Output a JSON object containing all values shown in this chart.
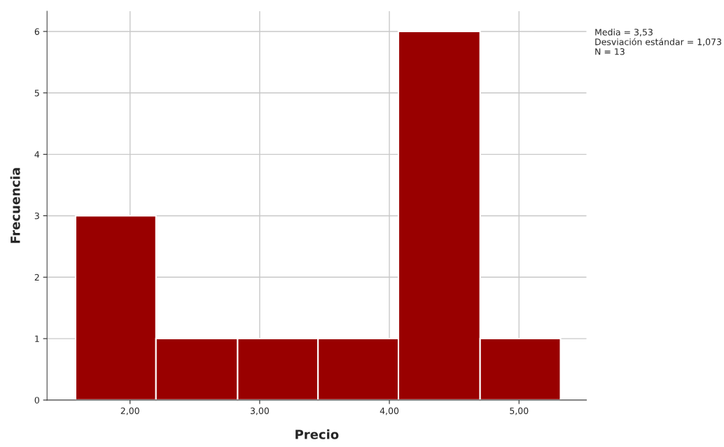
{
  "chart_data": {
    "type": "histogram",
    "xlabel": "Precio",
    "ylabel": "Frecuencia",
    "bins": [
      1.58,
      2.2,
      2.83,
      3.45,
      4.07,
      4.7,
      5.32
    ],
    "values": [
      3,
      1,
      1,
      1,
      6,
      1
    ],
    "color": "#990000",
    "xlim": [
      1.36,
      5.52
    ],
    "xticks": [
      {
        "value": 2,
        "label": "2,00"
      },
      {
        "value": 3,
        "label": "3,00"
      },
      {
        "value": 4,
        "label": "4,00"
      },
      {
        "value": 5,
        "label": "5,00"
      }
    ],
    "ylim": [
      0,
      6.33
    ],
    "yticks": [
      0,
      1,
      2,
      3,
      4,
      5,
      6
    ],
    "grid": true,
    "annotations": [
      "Media = 3,53",
      "Desviación estándar = 1,073",
      "N = 13"
    ]
  }
}
